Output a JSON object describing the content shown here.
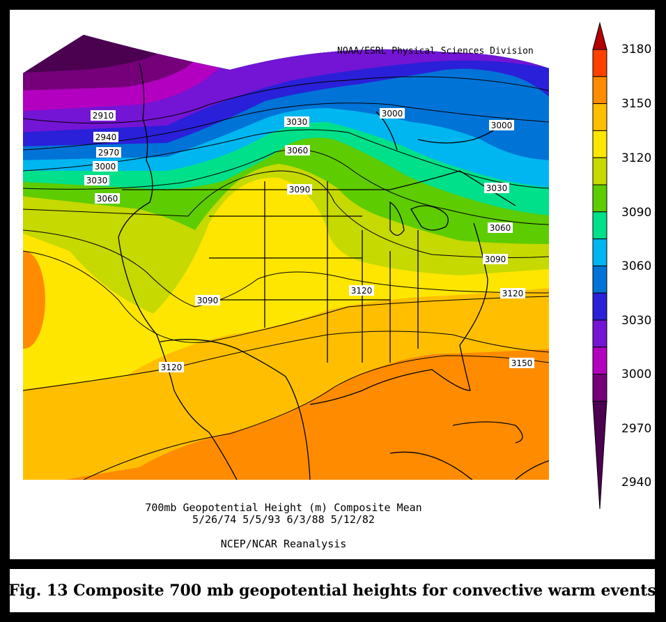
{
  "credit": "NOAA/ESRL Physical Sciences Division",
  "map_title": "700mb Geopotential Height (m) Composite Mean",
  "map_dates": "5/26/74 5/5/93 6/3/88 5/12/82",
  "map_source": "NCEP/NCAR Reanalysis",
  "caption": "Fig. 13 Composite 700 mb geopotential heights for convective warm events",
  "colorbar": {
    "labels": [
      "3180",
      "3150",
      "3120",
      "3090",
      "3060",
      "3030",
      "3000",
      "2970",
      "2940"
    ],
    "colors": [
      "#b40000",
      "#ff4000",
      "#ff8c00",
      "#ffbf00",
      "#ffe600",
      "#c6d900",
      "#5dcc00",
      "#00e08a",
      "#00b6f0",
      "#0073d6",
      "#2a20d9",
      "#7414d4",
      "#b300c0",
      "#75007a",
      "#4b0050"
    ]
  },
  "contour_labels": {
    "l2910": "2910",
    "l2940": "2940",
    "l2970": "2970",
    "l3000a": "3000",
    "l3030a": "3030",
    "l3060a": "3060",
    "l3030b": "3030",
    "l3060b": "3060",
    "l3090a": "3090",
    "l3000b": "3000",
    "l3000c": "3000",
    "l3030c": "3030",
    "l3060c": "3060",
    "l3090b": "3090",
    "l3120a": "3120",
    "l3090c": "3090",
    "l3120b": "3120",
    "l3120c": "3120",
    "l3150": "3150"
  }
}
